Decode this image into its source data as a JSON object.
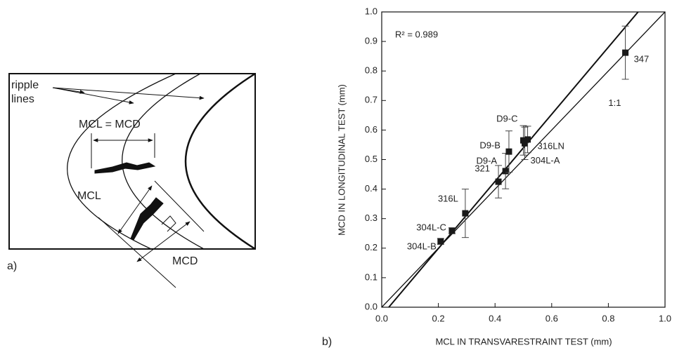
{
  "panel_a": {
    "ripple_label": [
      "ripple",
      "lines"
    ],
    "equal_label": "MCL = MCD",
    "mcl_label": "MCL",
    "mcd_label": "MCD",
    "panel_label": "a)"
  },
  "chart_data": {
    "type": "scatter",
    "panel_label": "b)",
    "x_label": "MCL IN TRANSVARESTRAINT TEST (mm)",
    "y_label": "MCD IN LONGITUDINAL TEST (mm)",
    "annotation": "R² = 0.989",
    "series": [
      {
        "name": null,
        "color": "#1a1a1a",
        "labels": [
          "304L-B",
          "304L-C",
          "316L",
          "321",
          "D9-A",
          "D9-B",
          "D9-C",
          "304L-A",
          "316LN",
          "347"
        ],
        "x": [
          0.208,
          0.248,
          0.295,
          0.412,
          0.437,
          0.449,
          0.5,
          0.505,
          0.515,
          0.86
        ],
        "values": [
          0.223,
          0.259,
          0.318,
          0.425,
          0.461,
          0.527,
          0.565,
          0.555,
          0.568,
          0.862
        ],
        "errors": [
          0.01,
          0.01,
          0.082,
          0.055,
          0.06,
          0.07,
          0.05,
          0.055,
          0.045,
          0.09
        ]
      }
    ],
    "fit_line": {
      "x": [
        0.025,
        0.905
      ],
      "y": [
        0,
        1
      ]
    },
    "identity_line": {
      "label": "1:1",
      "x": [
        0,
        1
      ],
      "y": [
        0,
        1
      ]
    },
    "xlim": [
      0,
      1
    ],
    "ylim": [
      0,
      1
    ],
    "xticks": [
      {
        "value": 0,
        "label": "0.0"
      },
      0.2,
      0.4,
      0.6,
      0.8,
      {
        "value": 1,
        "label": "1.0"
      }
    ],
    "yticks": [
      {
        "value": 0,
        "label": "0.0"
      },
      0.1,
      0.2,
      0.3,
      0.4,
      0.5,
      0.6,
      0.7,
      0.8,
      0.9,
      {
        "value": 1,
        "label": "1.0"
      }
    ]
  }
}
